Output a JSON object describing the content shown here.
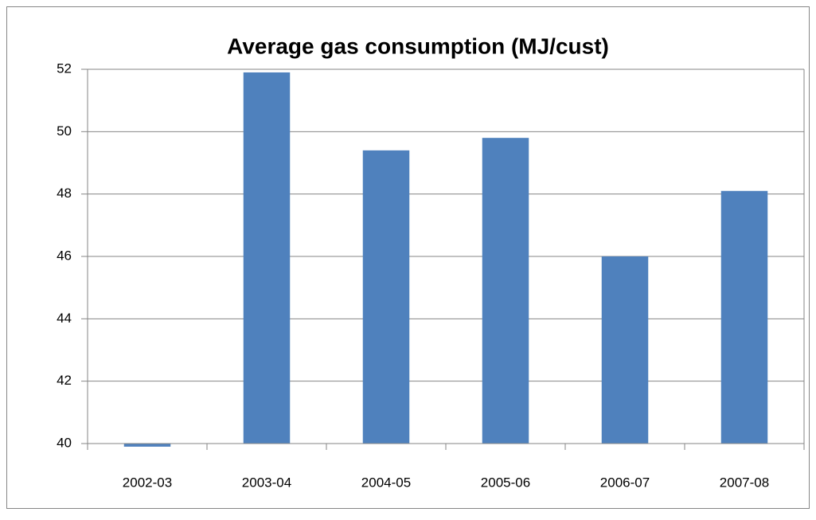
{
  "chart_data": {
    "type": "bar",
    "title": "Average gas consumption (MJ/cust)",
    "categories": [
      "2002-03",
      "2003-04",
      "2004-05",
      "2005-06",
      "2006-07",
      "2007-08"
    ],
    "values": [
      39.9,
      51.9,
      49.4,
      49.8,
      46.0,
      48.1
    ],
    "color": "#4f81bd",
    "ylim": [
      40,
      52
    ],
    "yticks": [
      40,
      42,
      44,
      46,
      48,
      50,
      52
    ],
    "grid": true
  }
}
